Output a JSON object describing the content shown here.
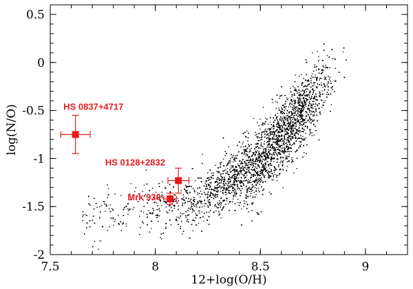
{
  "chart_data": {
    "type": "scatter",
    "xlabel": "12+log(O/H)",
    "ylabel": "log(N/O)",
    "xlim": [
      7.5,
      9.2
    ],
    "ylim": [
      -2.0,
      0.6
    ],
    "x_ticks": [
      7.5,
      8.0,
      8.5,
      9.0
    ],
    "x_tick_labels": [
      "7.5",
      "8",
      "8.5",
      "9"
    ],
    "y_ticks": [
      -2.0,
      -1.5,
      -1.0,
      -0.5,
      0.0,
      0.5
    ],
    "y_tick_labels": [
      "-2",
      "-1.5",
      "-1",
      "-0.5",
      "0",
      "0.5"
    ],
    "grid": false,
    "background_cloud": {
      "color": "#000000",
      "count": 9000,
      "description_points": [
        [
          7.7,
          -1.6
        ],
        [
          8.0,
          -1.55
        ],
        [
          8.2,
          -1.45
        ],
        [
          8.4,
          -1.2
        ],
        [
          8.55,
          -0.9
        ],
        [
          8.65,
          -0.65
        ],
        [
          8.75,
          -0.35
        ],
        [
          8.85,
          -0.1
        ],
        [
          8.95,
          0.25
        ]
      ]
    },
    "highlighted_points": [
      {
        "name": "HS 0837+4717",
        "x": 7.62,
        "y": -0.75,
        "xerr": 0.07,
        "yerr": 0.2
      },
      {
        "name": "HS 0128+2832",
        "x": 8.11,
        "y": -1.23,
        "xerr": 0.05,
        "yerr": 0.13
      },
      {
        "name": "Mrk 930",
        "x": 8.07,
        "y": -1.42,
        "xerr": 0.03,
        "yerr": 0.06
      }
    ],
    "highlight_color": "#e8191e"
  }
}
